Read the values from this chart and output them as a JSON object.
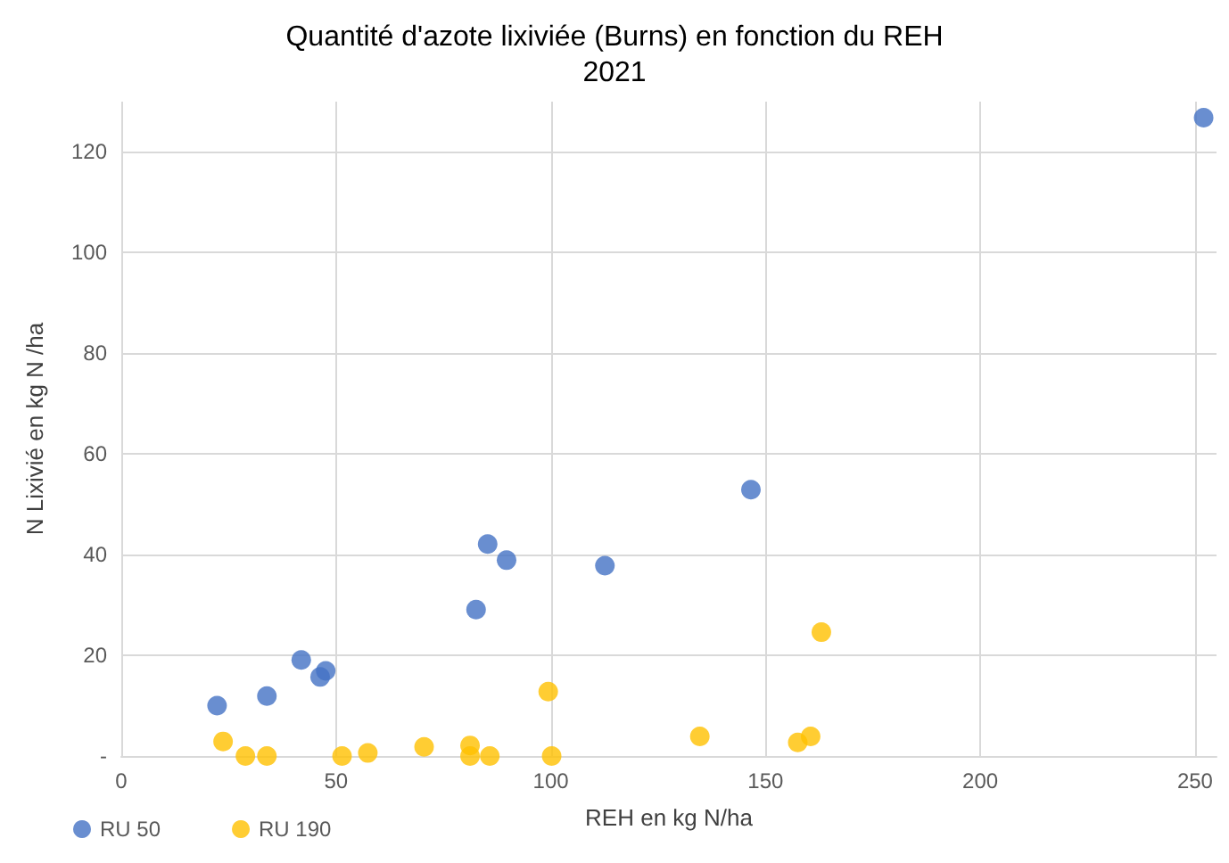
{
  "chart_data": {
    "type": "scatter",
    "title": "Quantité d'azote lixiviée (Burns) en fonction du REH",
    "subtitle": "2021",
    "xlabel": "REH en kg N/ha",
    "ylabel": "N Lixivié en kg N /ha",
    "xlim": [
      0,
      255
    ],
    "xticks": [
      0,
      50,
      100,
      150,
      200,
      250
    ],
    "ylim": [
      0,
      130
    ],
    "yticks": [
      {
        "value": 0,
        "label": "-"
      },
      20,
      40,
      60,
      80,
      100,
      120
    ],
    "grid": true,
    "legend": "bottom left",
    "marker": "circle",
    "series": [
      {
        "name": "RU 50",
        "color": "#4472c4",
        "x": [
          22.3,
          33.9,
          41.9,
          46.3,
          47.6,
          82.6,
          85.3,
          89.7,
          112.6,
          146.6,
          252
        ],
        "values": [
          10,
          11.9,
          19.1,
          15.7,
          16.9,
          29.1,
          42.1,
          38.9,
          37.8,
          52.9,
          126.8
        ]
      },
      {
        "name": "RU 190",
        "color": "#ffc000",
        "x": [
          23.7,
          28.9,
          33.9,
          51.4,
          57.4,
          70.5,
          81.2,
          81.2,
          85.8,
          99.4,
          100.2,
          134.7,
          157.5,
          160.5,
          163
        ],
        "values": [
          2.9,
          0,
          0,
          0,
          0.6,
          1.8,
          2.1,
          0,
          0,
          12.8,
          0,
          3.9,
          2.7,
          3.9,
          24.6
        ]
      }
    ]
  }
}
